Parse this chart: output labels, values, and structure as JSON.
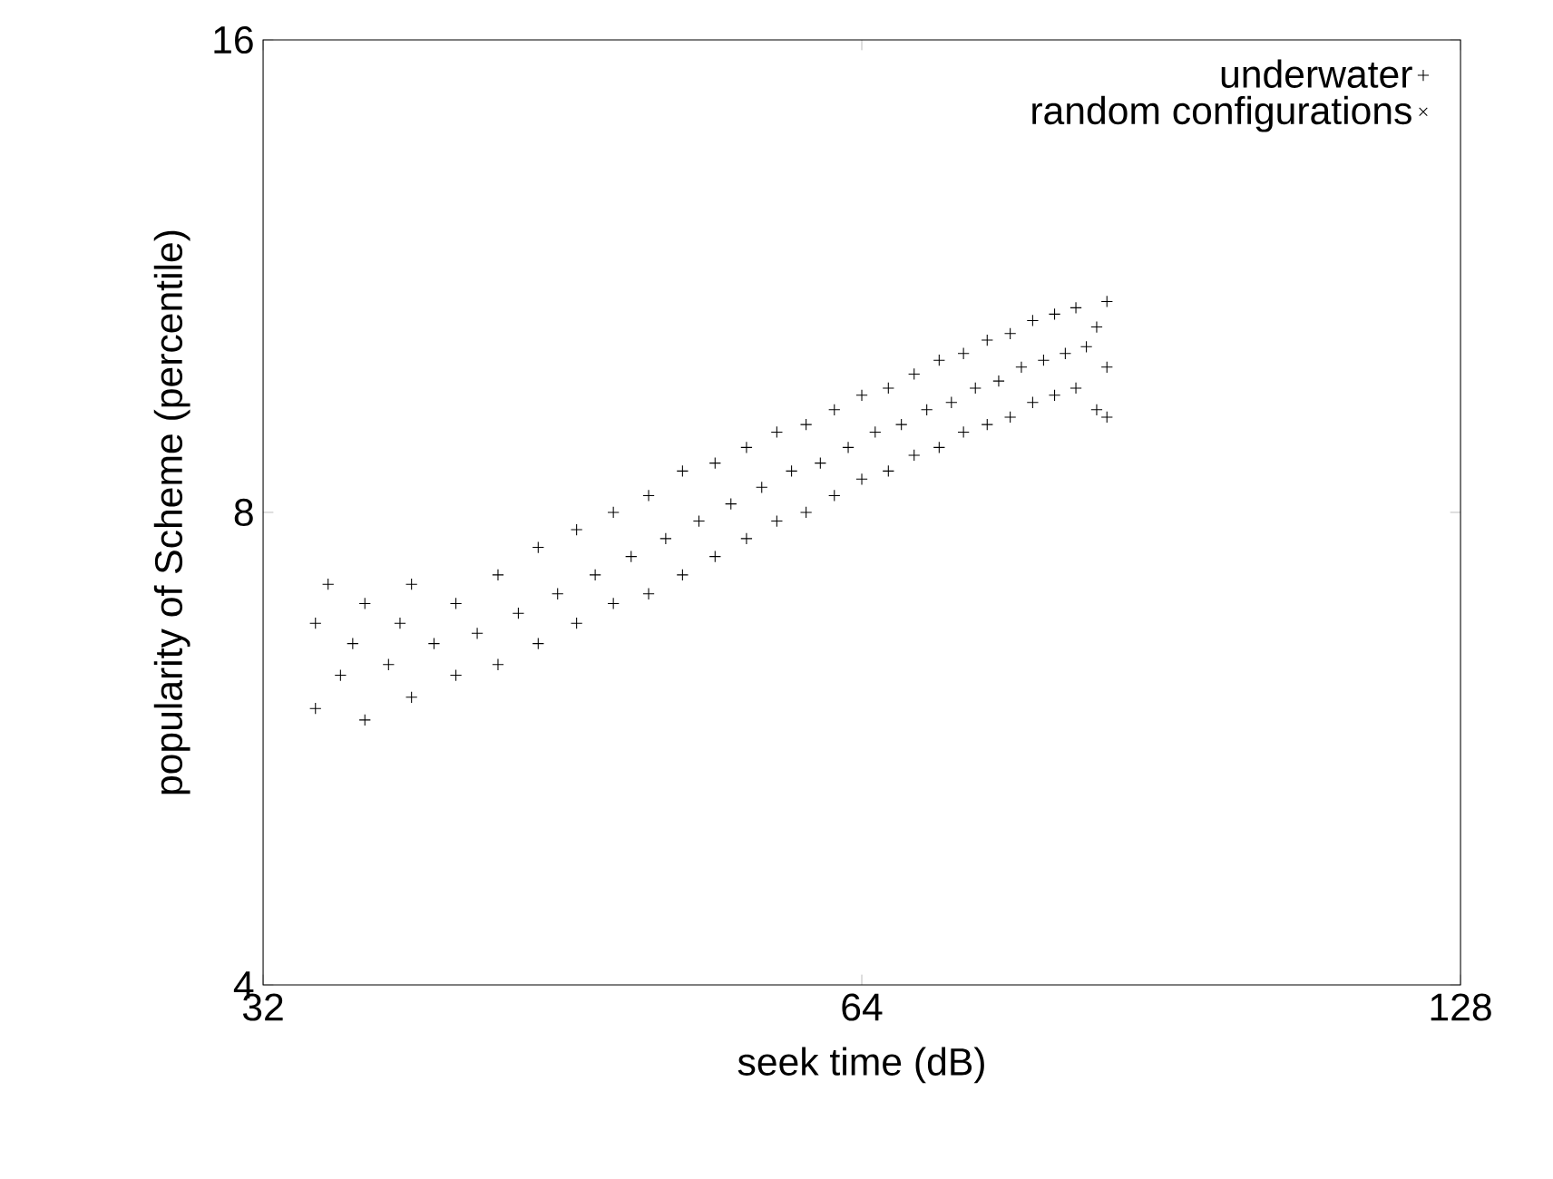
{
  "chart_data": {
    "type": "scatter",
    "xlabel": "seek time (dB)",
    "ylabel": "popularity of Scheme  (percentile)",
    "log": "xy",
    "xlim": [
      32,
      128
    ],
    "ylim": [
      4,
      16
    ],
    "xticks": [
      32,
      64,
      128
    ],
    "yticks": [
      4,
      8,
      16
    ],
    "grid": false,
    "legend": "top right",
    "series": [
      {
        "name": "underwater",
        "color": "#000000",
        "marker": "plus",
        "x": [
          34,
          34,
          34.5,
          35,
          35.5,
          36,
          36,
          37,
          37.5,
          38,
          38,
          39,
          40,
          40,
          41,
          42,
          42,
          43,
          44,
          44,
          45,
          46,
          46,
          47,
          48,
          48,
          49,
          50,
          50,
          51,
          52,
          52,
          53,
          54,
          54,
          55,
          56,
          56,
          57,
          58,
          58,
          59,
          60,
          60,
          61,
          62,
          62,
          63,
          64,
          64,
          65,
          66,
          66,
          67,
          68,
          68,
          69,
          70,
          70,
          71,
          72,
          72,
          73,
          74,
          74,
          75,
          76,
          76,
          77,
          78,
          78,
          79,
          80,
          80,
          81,
          82,
          82,
          83,
          84,
          84,
          85,
          85,
          85
        ],
        "values": [
          6.0,
          6.8,
          7.2,
          6.3,
          6.6,
          5.9,
          7.0,
          6.4,
          6.8,
          6.1,
          7.2,
          6.6,
          6.3,
          7.0,
          6.7,
          6.4,
          7.3,
          6.9,
          6.6,
          7.6,
          7.1,
          6.8,
          7.8,
          7.3,
          7.0,
          8.0,
          7.5,
          7.1,
          8.2,
          7.7,
          7.3,
          8.5,
          7.9,
          7.5,
          8.6,
          8.1,
          7.7,
          8.8,
          8.3,
          7.9,
          9.0,
          8.5,
          8.0,
          9.1,
          8.6,
          8.2,
          9.3,
          8.8,
          8.4,
          9.5,
          9.0,
          8.5,
          9.6,
          9.1,
          8.7,
          9.8,
          9.3,
          8.8,
          10.0,
          9.4,
          9.0,
          10.1,
          9.6,
          9.1,
          10.3,
          9.7,
          9.2,
          10.4,
          9.9,
          9.4,
          10.6,
          10.0,
          9.5,
          10.7,
          10.1,
          9.6,
          10.8,
          10.2,
          9.3,
          10.5,
          9.2,
          10.9,
          9.9
        ]
      },
      {
        "name": "random configurations",
        "color": "#000000",
        "marker": "cross"
      }
    ]
  }
}
